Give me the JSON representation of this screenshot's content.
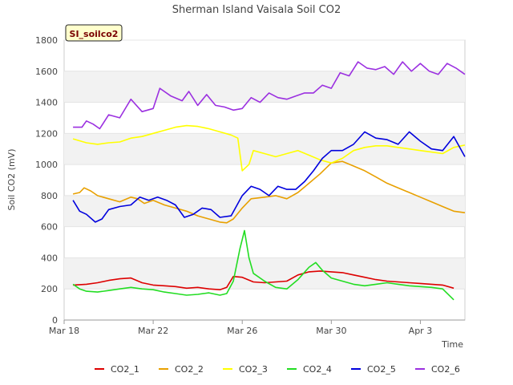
{
  "chart_data": {
    "type": "line",
    "title": "Sherman Island Vaisala Soil CO2",
    "badge": "SI_soilco2",
    "xlabel": "Time",
    "ylabel": "Soil CO2 (mV)",
    "ylim": [
      0,
      1800
    ],
    "yticks": [
      0,
      200,
      400,
      600,
      800,
      1000,
      1200,
      1400,
      1600,
      1800
    ],
    "xlim": [
      0,
      18
    ],
    "xticks": [
      {
        "x": 0,
        "label": "Mar 18"
      },
      {
        "x": 4,
        "label": "Mar 22"
      },
      {
        "x": 8,
        "label": "Mar 26"
      },
      {
        "x": 12,
        "label": "Mar 30"
      },
      {
        "x": 16,
        "label": "Apr 3"
      }
    ],
    "x_units": "days since Mar 18",
    "grid": "horizontal alternating bands",
    "legend": "bottom",
    "series": [
      {
        "name": "CO2_1",
        "color": "#dd0000",
        "points": [
          [
            0.4,
            225
          ],
          [
            1,
            230
          ],
          [
            1.5,
            240
          ],
          [
            2,
            255
          ],
          [
            2.5,
            265
          ],
          [
            3,
            270
          ],
          [
            3.5,
            240
          ],
          [
            4,
            225
          ],
          [
            4.5,
            220
          ],
          [
            5,
            215
          ],
          [
            5.5,
            205
          ],
          [
            6,
            210
          ],
          [
            6.5,
            200
          ],
          [
            7,
            195
          ],
          [
            7.3,
            210
          ],
          [
            7.6,
            280
          ],
          [
            8,
            275
          ],
          [
            8.5,
            245
          ],
          [
            9,
            240
          ],
          [
            9.5,
            245
          ],
          [
            10,
            250
          ],
          [
            10.5,
            290
          ],
          [
            11,
            310
          ],
          [
            11.5,
            315
          ],
          [
            12,
            310
          ],
          [
            12.5,
            305
          ],
          [
            13,
            290
          ],
          [
            13.5,
            275
          ],
          [
            14,
            260
          ],
          [
            14.5,
            250
          ],
          [
            15,
            245
          ],
          [
            15.5,
            240
          ],
          [
            16,
            235
          ],
          [
            16.5,
            230
          ],
          [
            17,
            225
          ],
          [
            17.5,
            205
          ]
        ]
      },
      {
        "name": "CO2_2",
        "color": "#e8a000",
        "points": [
          [
            0.4,
            810
          ],
          [
            0.7,
            820
          ],
          [
            0.9,
            850
          ],
          [
            1.2,
            830
          ],
          [
            1.5,
            800
          ],
          [
            2,
            780
          ],
          [
            2.5,
            760
          ],
          [
            3,
            790
          ],
          [
            3.3,
            780
          ],
          [
            3.6,
            750
          ],
          [
            4,
            770
          ],
          [
            4.5,
            740
          ],
          [
            5,
            720
          ],
          [
            5.5,
            700
          ],
          [
            6,
            670
          ],
          [
            6.5,
            650
          ],
          [
            7,
            630
          ],
          [
            7.3,
            625
          ],
          [
            7.6,
            650
          ],
          [
            8,
            720
          ],
          [
            8.4,
            780
          ],
          [
            9,
            790
          ],
          [
            9.5,
            800
          ],
          [
            10,
            780
          ],
          [
            10.5,
            820
          ],
          [
            11,
            880
          ],
          [
            11.5,
            940
          ],
          [
            12,
            1010
          ],
          [
            12.5,
            1020
          ],
          [
            13,
            990
          ],
          [
            13.5,
            960
          ],
          [
            14,
            920
          ],
          [
            14.5,
            880
          ],
          [
            15,
            850
          ],
          [
            15.5,
            820
          ],
          [
            16,
            790
          ],
          [
            16.5,
            760
          ],
          [
            17,
            730
          ],
          [
            17.5,
            700
          ],
          [
            18,
            690
          ]
        ]
      },
      {
        "name": "CO2_3",
        "color": "#ffff00",
        "points": [
          [
            0.4,
            1165
          ],
          [
            1,
            1140
          ],
          [
            1.5,
            1130
          ],
          [
            2,
            1140
          ],
          [
            2.5,
            1145
          ],
          [
            3,
            1170
          ],
          [
            3.5,
            1180
          ],
          [
            4,
            1200
          ],
          [
            4.5,
            1220
          ],
          [
            5,
            1240
          ],
          [
            5.5,
            1250
          ],
          [
            6,
            1245
          ],
          [
            6.5,
            1230
          ],
          [
            7,
            1210
          ],
          [
            7.5,
            1190
          ],
          [
            7.8,
            1170
          ],
          [
            8,
            960
          ],
          [
            8.3,
            1000
          ],
          [
            8.5,
            1090
          ],
          [
            9,
            1070
          ],
          [
            9.5,
            1050
          ],
          [
            10,
            1070
          ],
          [
            10.5,
            1090
          ],
          [
            11,
            1060
          ],
          [
            11.5,
            1030
          ],
          [
            12,
            1010
          ],
          [
            12.5,
            1040
          ],
          [
            13,
            1090
          ],
          [
            13.5,
            1110
          ],
          [
            14,
            1120
          ],
          [
            14.5,
            1120
          ],
          [
            15,
            1110
          ],
          [
            15.5,
            1100
          ],
          [
            16,
            1090
          ],
          [
            16.5,
            1080
          ],
          [
            17,
            1070
          ],
          [
            17.5,
            1110
          ],
          [
            18,
            1125
          ]
        ]
      },
      {
        "name": "CO2_4",
        "color": "#22dd22",
        "points": [
          [
            0.4,
            230
          ],
          [
            0.7,
            200
          ],
          [
            1,
            185
          ],
          [
            1.5,
            180
          ],
          [
            2,
            190
          ],
          [
            2.5,
            200
          ],
          [
            3,
            210
          ],
          [
            3.5,
            200
          ],
          [
            4,
            195
          ],
          [
            4.5,
            180
          ],
          [
            5,
            170
          ],
          [
            5.5,
            160
          ],
          [
            6,
            165
          ],
          [
            6.5,
            175
          ],
          [
            7,
            160
          ],
          [
            7.3,
            170
          ],
          [
            7.6,
            250
          ],
          [
            7.9,
            460
          ],
          [
            8.1,
            575
          ],
          [
            8.3,
            400
          ],
          [
            8.5,
            300
          ],
          [
            9,
            250
          ],
          [
            9.5,
            210
          ],
          [
            10,
            200
          ],
          [
            10.5,
            260
          ],
          [
            11,
            340
          ],
          [
            11.3,
            370
          ],
          [
            11.6,
            320
          ],
          [
            12,
            270
          ],
          [
            12.5,
            250
          ],
          [
            13,
            230
          ],
          [
            13.5,
            220
          ],
          [
            14,
            230
          ],
          [
            14.5,
            240
          ],
          [
            15,
            230
          ],
          [
            15.5,
            220
          ],
          [
            16,
            215
          ],
          [
            16.5,
            210
          ],
          [
            17,
            200
          ],
          [
            17.5,
            130
          ]
        ]
      },
      {
        "name": "CO2_5",
        "color": "#0000dd",
        "points": [
          [
            0.4,
            770
          ],
          [
            0.7,
            700
          ],
          [
            1,
            680
          ],
          [
            1.4,
            630
          ],
          [
            1.7,
            650
          ],
          [
            2,
            710
          ],
          [
            2.5,
            730
          ],
          [
            3,
            740
          ],
          [
            3.4,
            790
          ],
          [
            3.8,
            770
          ],
          [
            4.2,
            790
          ],
          [
            4.6,
            770
          ],
          [
            5,
            740
          ],
          [
            5.4,
            660
          ],
          [
            5.8,
            680
          ],
          [
            6.2,
            720
          ],
          [
            6.6,
            710
          ],
          [
            7,
            660
          ],
          [
            7.5,
            670
          ],
          [
            8,
            800
          ],
          [
            8.4,
            860
          ],
          [
            8.8,
            840
          ],
          [
            9.2,
            800
          ],
          [
            9.6,
            860
          ],
          [
            10,
            840
          ],
          [
            10.4,
            840
          ],
          [
            10.8,
            890
          ],
          [
            11.2,
            960
          ],
          [
            11.6,
            1040
          ],
          [
            12,
            1090
          ],
          [
            12.5,
            1090
          ],
          [
            13,
            1130
          ],
          [
            13.5,
            1210
          ],
          [
            14,
            1170
          ],
          [
            14.5,
            1160
          ],
          [
            15,
            1130
          ],
          [
            15.5,
            1210
          ],
          [
            16,
            1150
          ],
          [
            16.5,
            1100
          ],
          [
            17,
            1090
          ],
          [
            17.5,
            1180
          ],
          [
            18,
            1050
          ]
        ]
      },
      {
        "name": "CO2_6",
        "color": "#9b30e0",
        "points": [
          [
            0.4,
            1240
          ],
          [
            0.8,
            1240
          ],
          [
            1,
            1280
          ],
          [
            1.3,
            1260
          ],
          [
            1.6,
            1230
          ],
          [
            2,
            1320
          ],
          [
            2.5,
            1300
          ],
          [
            3,
            1420
          ],
          [
            3.5,
            1340
          ],
          [
            4,
            1360
          ],
          [
            4.3,
            1490
          ],
          [
            4.8,
            1440
          ],
          [
            5.3,
            1410
          ],
          [
            5.6,
            1470
          ],
          [
            6,
            1380
          ],
          [
            6.4,
            1450
          ],
          [
            6.8,
            1380
          ],
          [
            7.2,
            1370
          ],
          [
            7.6,
            1350
          ],
          [
            8,
            1360
          ],
          [
            8.4,
            1430
          ],
          [
            8.8,
            1400
          ],
          [
            9.2,
            1460
          ],
          [
            9.6,
            1430
          ],
          [
            10,
            1420
          ],
          [
            10.4,
            1440
          ],
          [
            10.8,
            1460
          ],
          [
            11.2,
            1460
          ],
          [
            11.6,
            1510
          ],
          [
            12,
            1490
          ],
          [
            12.4,
            1590
          ],
          [
            12.8,
            1570
          ],
          [
            13.2,
            1660
          ],
          [
            13.6,
            1620
          ],
          [
            14,
            1610
          ],
          [
            14.4,
            1630
          ],
          [
            14.8,
            1580
          ],
          [
            15.2,
            1660
          ],
          [
            15.6,
            1600
          ],
          [
            16,
            1650
          ],
          [
            16.4,
            1600
          ],
          [
            16.8,
            1580
          ],
          [
            17.2,
            1650
          ],
          [
            17.6,
            1620
          ],
          [
            18,
            1580
          ]
        ]
      }
    ]
  }
}
